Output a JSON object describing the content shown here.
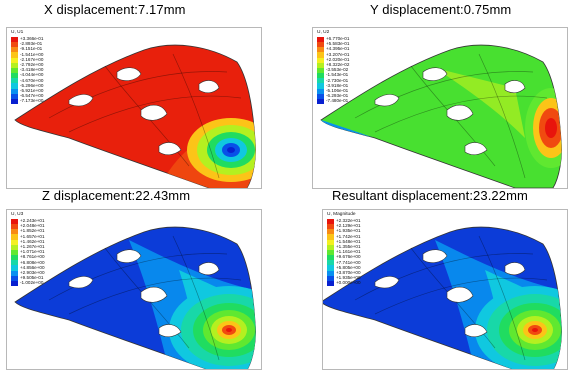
{
  "panels": [
    {
      "title": "X displacement:7.17mm",
      "legend_title": "U, U1",
      "values": [
        "+3.366e-01",
        "-2.893e-01",
        "-9.151e-01",
        "-1.541e+00",
        "-2.167e+00",
        "-2.792e+00",
        "-3.418e+00",
        "-4.044e+00",
        "-4.670e+00",
        "-5.296e+00",
        "-5.921e+00",
        "-6.547e+00",
        "-7.173e+00"
      ],
      "colors": [
        "#e8140c",
        "#f04a10",
        "#f88a14",
        "#fcc418",
        "#f4f020",
        "#b4f020",
        "#60e830",
        "#20dc60",
        "#18d8a8",
        "#10c8e0",
        "#0890f0",
        "#0850e8",
        "#0820d0"
      ],
      "body_color": "#e8200c"
    },
    {
      "title": "Y displacement:0.75mm",
      "legend_title": "U, U2",
      "values": [
        "+6.770e-01",
        "+5.583e-01",
        "+4.395e-01",
        "+3.207e-01",
        "+2.020e-01",
        "+8.322e-02",
        "-3.553e-02",
        "-1.543e-01",
        "-2.730e-01",
        "-3.918e-01",
        "-5.106e-01",
        "-6.293e-01",
        "-7.480e-01"
      ],
      "colors": [
        "#e8140c",
        "#f04a10",
        "#f88a14",
        "#fcc418",
        "#f4f020",
        "#b4f020",
        "#60e830",
        "#20dc60",
        "#18d8a8",
        "#10c8e0",
        "#0890f0",
        "#0850e8",
        "#0820d0"
      ],
      "body_color": "#48e030"
    },
    {
      "title": "Z displacement:22.43mm",
      "legend_title": "U, U3",
      "values": [
        "+2.243e+01",
        "+2.048e+01",
        "+1.852e+01",
        "+1.657e+01",
        "+1.462e+01",
        "+1.267e+01",
        "+1.071e+01",
        "+8.761e+00",
        "+6.808e+00",
        "+4.856e+00",
        "+2.903e+00",
        "+9.505e-01",
        "-1.002e+00"
      ],
      "colors": [
        "#e8140c",
        "#f04a10",
        "#f88a14",
        "#fcc418",
        "#f4f020",
        "#b4f020",
        "#60e830",
        "#20dc60",
        "#18d8a8",
        "#10c8e0",
        "#0890f0",
        "#0850e8",
        "#0820d0"
      ],
      "body_color": "#0c3cd8"
    },
    {
      "title": "Resultant displacement:23.22mm",
      "legend_title": "U, Magnitude",
      "values": [
        "+2.322e+01",
        "+2.129e+01",
        "+1.935e+01",
        "+1.742e+01",
        "+1.548e+01",
        "+1.355e+01",
        "+1.161e+01",
        "+9.676e+00",
        "+7.741e+00",
        "+5.805e+00",
        "+3.870e+00",
        "+1.935e+00",
        "+0.000e+00"
      ],
      "colors": [
        "#e8140c",
        "#f04a10",
        "#f88a14",
        "#fcc418",
        "#f4f020",
        "#b4f020",
        "#60e830",
        "#20dc60",
        "#18d8a8",
        "#10c8e0",
        "#0890f0",
        "#0850e8",
        "#0820d0"
      ],
      "body_color": "#0c3cd8"
    }
  ]
}
